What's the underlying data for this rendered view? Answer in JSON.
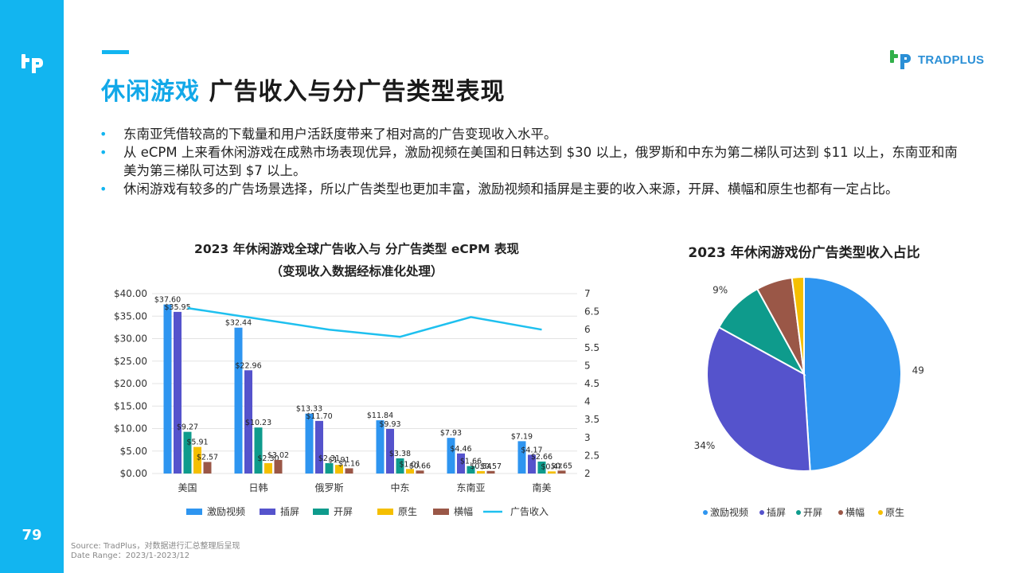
{
  "page": {
    "number": "79",
    "title_highlight": "休闲游戏",
    "title_rest": " 广告收入与分广告类型表现",
    "brand_name": "TRADPLUS",
    "bullets": [
      "东南亚凭借较高的下载量和用户活跃度带来了相对高的广告变现收入水平。",
      "从 eCPM 上来看休闲游戏在成熟市场表现优异，激励视频在美国和日韩达到 $30 以上，俄罗斯和中东为第二梯队可达到 $11 以上，东南亚和南美为第三梯队可达到 $7 以上。",
      "休闲游戏有较多的广告场景选择，所以广告类型也更加丰富，激励视频和插屏是主要的收入来源，开屏、横幅和原生也都有一定占比。"
    ],
    "footer_source": "Source: TradPlus，对数据进行汇总整理后呈现",
    "footer_range": "Date Range：2023/1-2023/12"
  },
  "colors": {
    "accent": "#12b5f0",
    "title_highlight": "#12a8e8",
    "line": "#1ec0ef"
  },
  "chart_data": [
    {
      "type": "bar",
      "title": "2023 年休闲游戏全球广告收入与 分广告类型 eCPM 表现",
      "subtitle": "（变现收入数据经标准化处理）",
      "categories": [
        "美国",
        "日韩",
        "俄罗斯",
        "中东",
        "东南亚",
        "南美"
      ],
      "ylim": [
        0,
        40
      ],
      "y_ticks": [
        "$0.00",
        "$5.00",
        "$10.00",
        "$15.00",
        "$20.00",
        "$25.00",
        "$30.00",
        "$35.00",
        "$40.00"
      ],
      "y2lim": [
        2,
        7
      ],
      "y2_ticks": [
        "2",
        "2.5",
        "3",
        "3.5",
        "4",
        "4.5",
        "5",
        "5.5",
        "6",
        "6.5",
        "7"
      ],
      "series": [
        {
          "name": "激励视频",
          "color": "#2e95f0",
          "values": [
            37.6,
            32.44,
            13.33,
            11.84,
            7.93,
            7.19
          ],
          "labels": [
            "$37.60",
            "$32.44",
            "$13.33",
            "$11.84",
            "$7.93",
            "$7.19"
          ]
        },
        {
          "name": "插屏",
          "color": "#5553cc",
          "values": [
            35.95,
            22.96,
            11.7,
            9.93,
            4.46,
            4.17
          ],
          "labels": [
            "$35.95",
            "$22.96",
            "$11.70",
            "$9.93",
            "$4.46",
            "$4.17"
          ]
        },
        {
          "name": "开屏",
          "color": "#0e9b8c",
          "values": [
            9.27,
            10.23,
            2.31,
            3.38,
            1.66,
            2.66
          ],
          "labels": [
            "$9.27",
            "$10.23",
            "$2.31",
            "$3.38",
            "$1.66",
            "$2.66"
          ]
        },
        {
          "name": "原生",
          "color": "#f5bf00",
          "values": [
            5.91,
            2.3,
            1.91,
            1.01,
            0.54,
            0.47
          ],
          "labels": [
            "$5.91",
            "$2.30",
            "$1.91",
            "$1.01",
            "$0.54",
            "$0.47"
          ]
        },
        {
          "name": "横幅",
          "color": "#9a5747",
          "values": [
            2.57,
            3.02,
            1.16,
            0.66,
            0.57,
            0.65
          ],
          "labels": [
            "$2.57",
            "$3.02",
            "$1.16",
            "$0.66",
            "$0.57",
            "$0.65"
          ]
        }
      ],
      "line_series": {
        "name": "广告收入",
        "color": "#1ec0ef",
        "values": [
          6.6,
          6.3,
          6.0,
          5.8,
          6.35,
          6.0
        ]
      },
      "legend_position": "bottom"
    },
    {
      "type": "pie",
      "title": "2023 年休闲游戏份广告类型收入占比",
      "slices": [
        {
          "name": "激励视频",
          "value": 49,
          "label": "49%",
          "color": "#2e95f0"
        },
        {
          "name": "插屏",
          "value": 34,
          "label": "34%",
          "color": "#5553cc"
        },
        {
          "name": "开屏",
          "value": 9,
          "label": "9%",
          "color": "#0e9b8c"
        },
        {
          "name": "横幅",
          "value": 6,
          "label": "6%",
          "color": "#9a5747"
        },
        {
          "name": "原生",
          "value": 2,
          "label": "2%",
          "color": "#f5bf00"
        }
      ],
      "legend_position": "bottom"
    }
  ]
}
